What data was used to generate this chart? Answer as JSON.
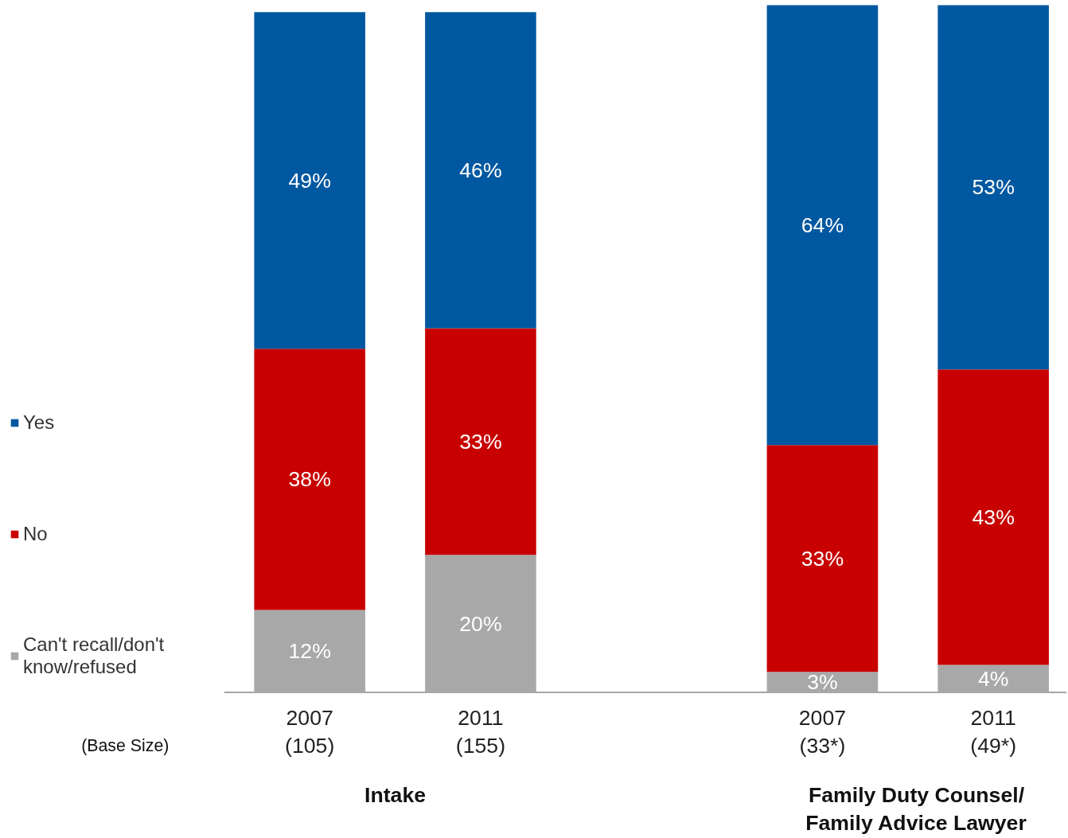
{
  "chart_data": {
    "type": "bar",
    "stacked": true,
    "legend": "left",
    "grid": false,
    "categories": [
      "2007\n(105)",
      "2011\n(155)",
      null,
      "2007\n(33*)",
      "2011\n(49*)"
    ],
    "series": [
      {
        "name": "Can't recall/don't\nknow/refused",
        "color": "#a8a8a8",
        "values": [
          12,
          20,
          null,
          3,
          4
        ],
        "value_labels": [
          "12%",
          "20%",
          null,
          "3%",
          "4%"
        ]
      },
      {
        "name": "No",
        "color": "#c80000",
        "values": [
          38,
          33,
          null,
          33,
          43
        ],
        "value_labels": [
          "38%",
          "33%",
          null,
          "33%",
          "43%"
        ]
      },
      {
        "name": "Yes",
        "color": "#0058a0",
        "values": [
          49,
          46,
          null,
          64,
          53
        ],
        "value_labels": [
          "49%",
          "46%",
          null,
          "64%",
          "53%"
        ]
      }
    ],
    "annotations": [
      "(Base Size)",
      "Intake",
      "Family Duty Counsel/\nFamily Advice Lawyer"
    ]
  }
}
